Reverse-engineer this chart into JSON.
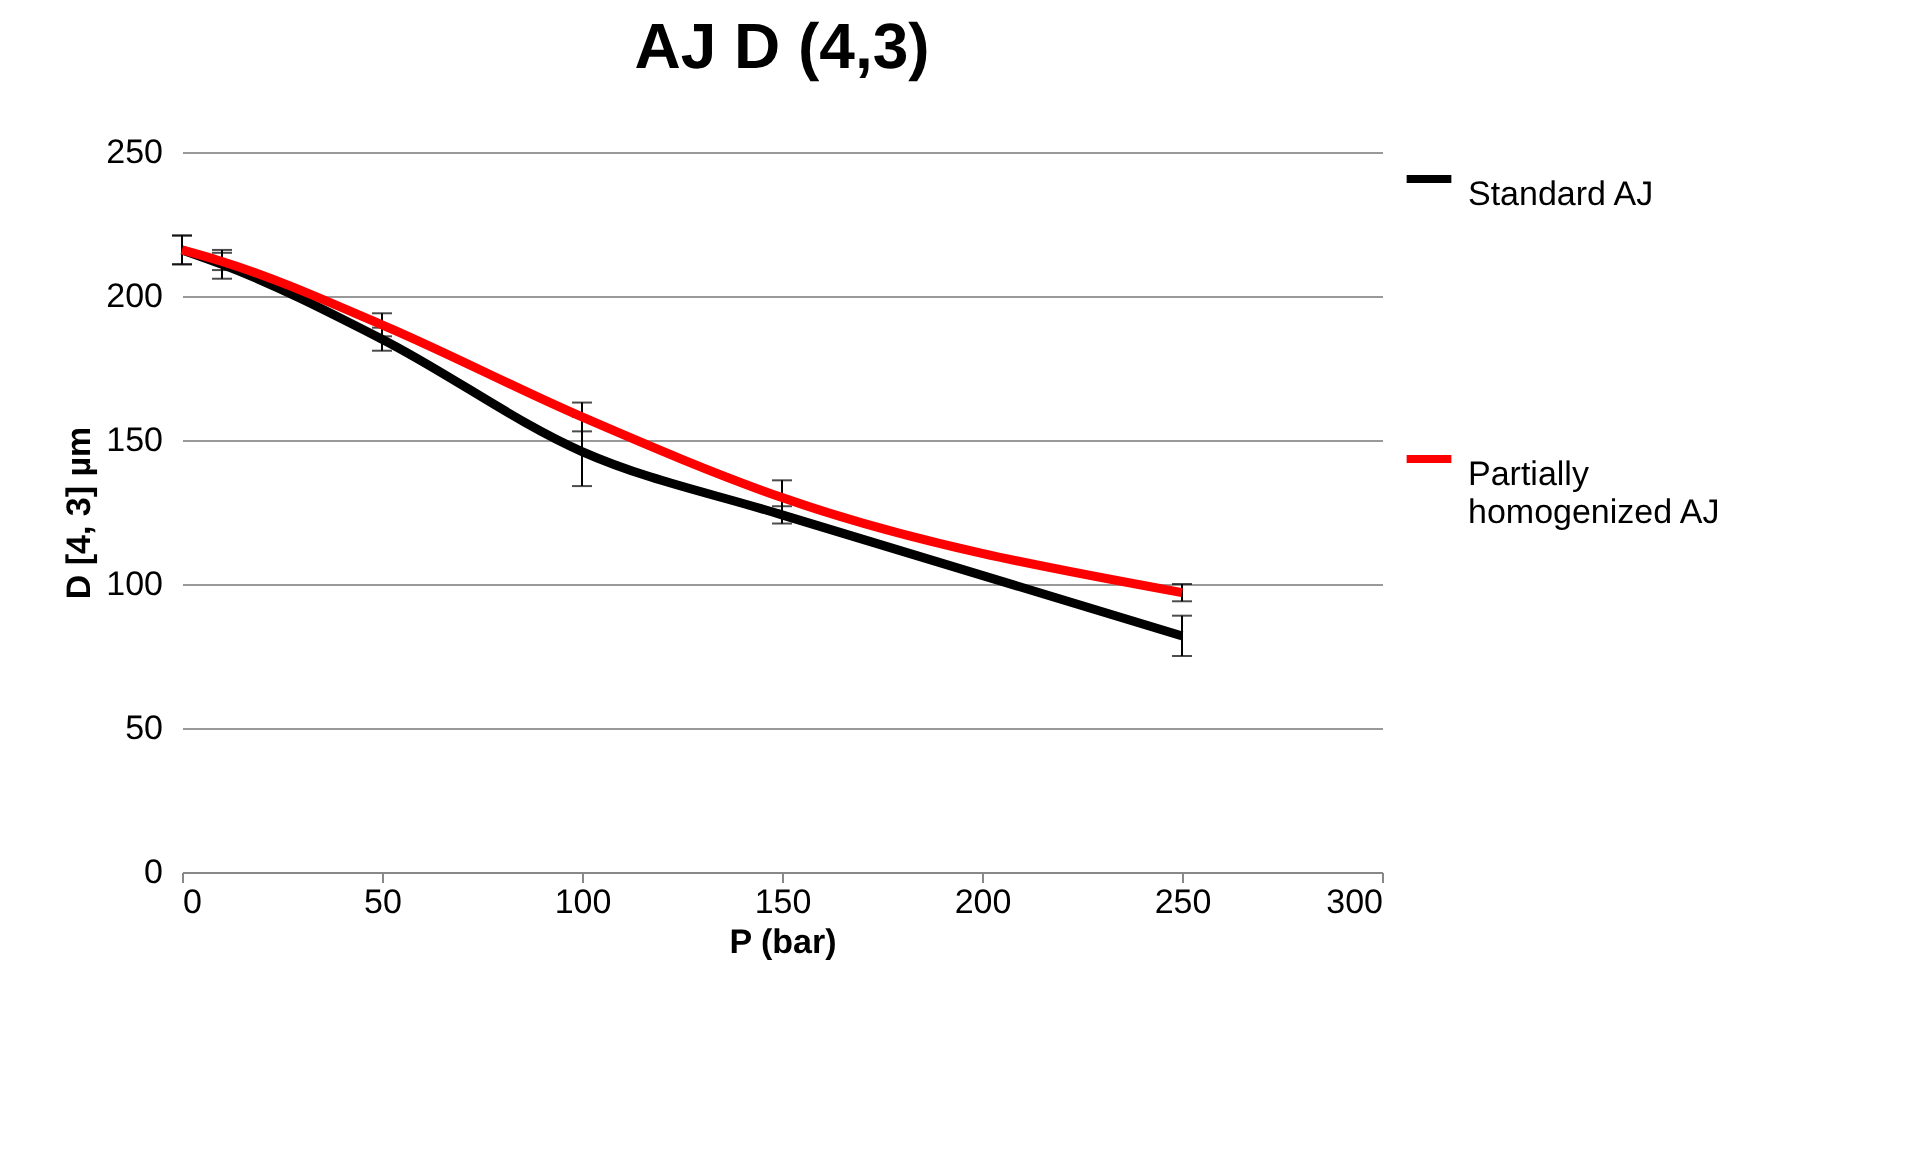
{
  "chart_data": {
    "type": "line",
    "title": "AJ D (4,3)",
    "xlabel": "P (bar)",
    "ylabel": "D [4, 3] µm",
    "x": [
      0,
      10,
      50,
      100,
      150,
      250
    ],
    "series": [
      {
        "name": "Standard AJ",
        "color": "#000000",
        "values": [
          216,
          211,
          185,
          146,
          124,
          82
        ],
        "errors": [
          5,
          5,
          4,
          12,
          3,
          7
        ]
      },
      {
        "name": "Partially homogenized AJ",
        "color": "#ff0000",
        "values": [
          216,
          212,
          190,
          158,
          130,
          97
        ],
        "errors": [
          5,
          3,
          4,
          5,
          6,
          3
        ]
      }
    ],
    "xlim": [
      0,
      300
    ],
    "xticks": [
      0,
      50,
      100,
      150,
      200,
      250,
      300
    ],
    "ylim": [
      0,
      250
    ],
    "yticks": [
      0,
      50,
      100,
      150,
      200,
      250
    ],
    "grid": "y",
    "legend": "right",
    "marker": "none",
    "line_style": "solid"
  }
}
